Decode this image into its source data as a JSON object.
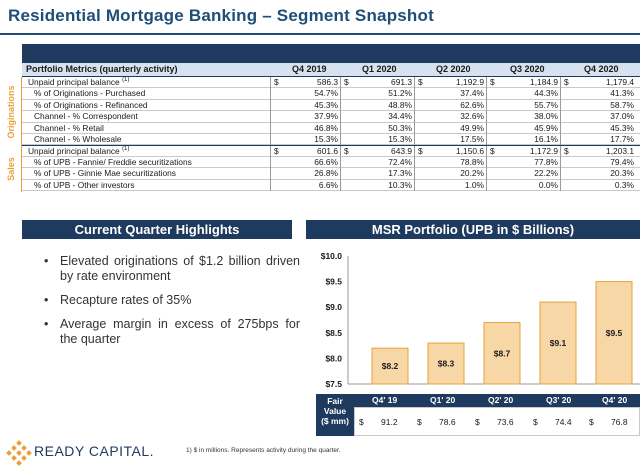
{
  "title": "Residential Mortgage Banking – Segment Snapshot",
  "metrics": {
    "header_label": "Portfolio Metrics (quarterly activity)",
    "quarters": [
      "Q4 2019",
      "Q1 2020",
      "Q2 2020",
      "Q3 2020",
      "Q4 2020"
    ],
    "originations": {
      "label": "Originations",
      "rows": [
        {
          "label": "Unpaid principal balance",
          "sup": "(1)",
          "dollar": true,
          "values": [
            "586.3",
            "691.3",
            "1,192.9",
            "1,184.9",
            "1,179.4"
          ]
        },
        {
          "label": "% of Originations - Purchased",
          "values": [
            "54.7%",
            "51.2%",
            "37.4%",
            "44.3%",
            "41.3%"
          ]
        },
        {
          "label": "% of Originations - Refinanced",
          "values": [
            "45.3%",
            "48.8%",
            "62.6%",
            "55.7%",
            "58.7%"
          ]
        },
        {
          "label": "Channel - % Correspondent",
          "values": [
            "37.9%",
            "34.4%",
            "32.6%",
            "38.0%",
            "37.0%"
          ]
        },
        {
          "label": "Channel - % Retail",
          "values": [
            "46.8%",
            "50.3%",
            "49.9%",
            "45.9%",
            "45.3%"
          ]
        },
        {
          "label": "Channel - % Wholesale",
          "values": [
            "15.3%",
            "15.3%",
            "17.5%",
            "16.1%",
            "17.7%"
          ]
        }
      ]
    },
    "sales": {
      "label": "Sales",
      "rows": [
        {
          "label": "Unpaid principal balance",
          "sup": "(1)",
          "dollar": true,
          "values": [
            "601.6",
            "643.9",
            "1,150.6",
            "1,172.9",
            "1,203.1"
          ]
        },
        {
          "label": "% of UPB - Fannie/ Freddie securitizations",
          "values": [
            "66.6%",
            "72.4%",
            "78.8%",
            "77.8%",
            "79.4%"
          ]
        },
        {
          "label": "% of UPB - Ginnie Mae securitizations",
          "values": [
            "26.8%",
            "17.3%",
            "20.2%",
            "22.2%",
            "20.3%"
          ]
        },
        {
          "label": "% of UPB - Other investors",
          "values": [
            "6.6%",
            "10.3%",
            "1.0%",
            "0.0%",
            "0.3%"
          ]
        }
      ]
    }
  },
  "highlights": {
    "heading": "Current Quarter Highlights",
    "bullet_glyph": "•",
    "items": [
      "Elevated originations of $1.2 billion driven by rate environment",
      "Recapture rates of 35%",
      "Average margin in excess of 275bps for the quarter"
    ]
  },
  "msr": {
    "heading": "MSR Portfolio (UPB in $ Billions)",
    "fair_value_label_1": "Fair",
    "fair_value_label_2": "Value",
    "fair_value_label_3": "($ mm)",
    "fair_value_quarters": [
      "Q4' 19",
      "Q1' 20",
      "Q2' 20",
      "Q3' 20",
      "Q4' 20"
    ],
    "fair_value_values": [
      "91.2",
      "78.6",
      "73.6",
      "74.4",
      "76.8"
    ],
    "dollar_sign": "$"
  },
  "chart_data": {
    "type": "bar",
    "categories": [
      "Q4' 19",
      "Q1' 20",
      "Q2' 20",
      "Q3' 20",
      "Q4' 20"
    ],
    "values": [
      8.2,
      8.3,
      8.7,
      9.1,
      9.5
    ],
    "value_labels": [
      "$8.2",
      "$8.3",
      "$8.7",
      "$9.1",
      "$9.5"
    ],
    "ylim": [
      7.5,
      10.0
    ],
    "yticks": [
      7.5,
      8.0,
      8.5,
      9.0,
      9.5,
      10.0
    ],
    "ytick_labels": [
      "$7.5",
      "$8.0",
      "$8.5",
      "$9.0",
      "$9.5",
      "$10.0"
    ],
    "title": "MSR Portfolio (UPB in $ Billions)",
    "xlabel": "",
    "ylabel": "",
    "grid": false,
    "colors": {
      "fill": "#f8d7a6",
      "stroke": "#e8a13a"
    }
  },
  "footer": {
    "logo_text": "READY CAPITAL.",
    "footnote": "1)  $ in millions. Represents activity during the quarter."
  },
  "colors": {
    "navy": "#1f3a5f",
    "title_blue": "#1f4e79",
    "accent_orange": "#e8a13a"
  }
}
